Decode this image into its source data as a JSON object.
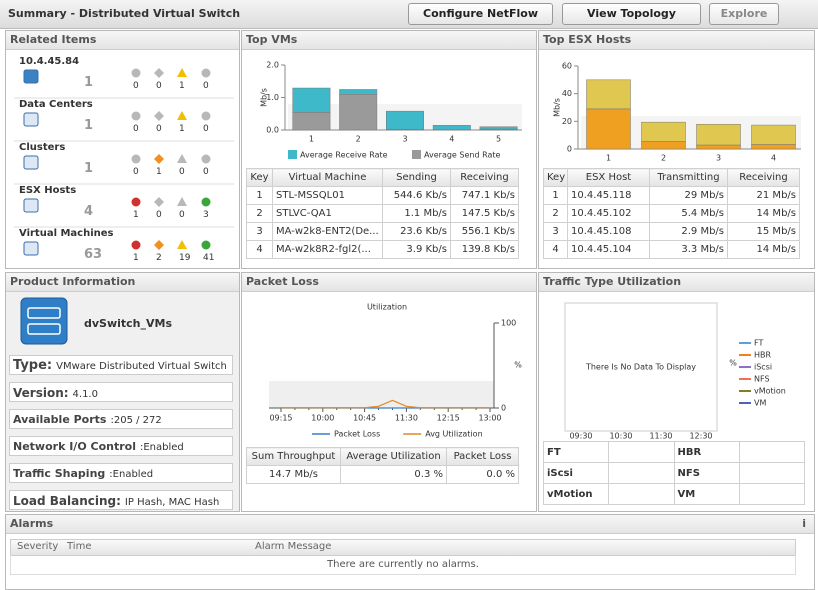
{
  "header": {
    "title": "Summary - Distributed Virtual Switch",
    "buttons": [
      "Configure NetFlow",
      "View Topology",
      "Explore"
    ]
  },
  "related_items": {
    "title": "Related Items",
    "items": [
      {
        "name": "10.4.45.84",
        "count": 1,
        "status": [
          0,
          0,
          1,
          0
        ]
      },
      {
        "name": "Data Centers",
        "count": 1,
        "status": [
          0,
          0,
          1,
          0
        ]
      },
      {
        "name": "Clusters",
        "count": 1,
        "status": [
          0,
          1,
          0,
          0
        ]
      },
      {
        "name": "ESX Hosts",
        "count": 4,
        "status": [
          1,
          0,
          0,
          3
        ]
      },
      {
        "name": "Virtual Machines",
        "count": 63,
        "status": [
          1,
          2,
          19,
          41
        ]
      }
    ]
  },
  "top_vms": {
    "title": "Top VMs",
    "table": {
      "columns": [
        "Key",
        "Virtual Machine",
        "Sending",
        "Receiving"
      ],
      "rows": [
        [
          1,
          "STL-MSSQL01",
          "544.6 Kb/s",
          "747.1 Kb/s"
        ],
        [
          2,
          "STLVC-QA1",
          "1.1 Mb/s",
          "147.5 Kb/s"
        ],
        [
          3,
          "MA-w2k8-ENT2(De...",
          "23.6 Kb/s",
          "556.1 Kb/s"
        ],
        [
          4,
          "MA-w2k8R2-fgl2(...",
          "3.9 Kb/s",
          "139.8 Kb/s"
        ]
      ]
    }
  },
  "top_esx_hosts": {
    "title": "Top ESX Hosts",
    "table": {
      "columns": [
        "Key",
        "ESX Host",
        "Transmitting",
        "Receiving"
      ],
      "rows": [
        [
          1,
          "10.4.45.118",
          "29 Mb/s",
          "21 Mb/s"
        ],
        [
          2,
          "10.4.45.102",
          "5.4 Mb/s",
          "14 Mb/s"
        ],
        [
          3,
          "10.4.45.108",
          "2.9 Mb/s",
          "15 Mb/s"
        ],
        [
          4,
          "10.4.45.104",
          "3.3 Mb/s",
          "14 Mb/s"
        ]
      ]
    }
  },
  "product_information": {
    "title": "Product Information",
    "name": "dvSwitch_VMs",
    "rows": [
      {
        "label": "Type:",
        "value": "VMware Distributed Virtual Switch"
      },
      {
        "label": "Version:",
        "value": "4.1.0"
      },
      {
        "label": "Available Ports",
        "value": ":205 / 272"
      },
      {
        "label": "Network I/O Control",
        "value": ":Enabled"
      },
      {
        "label": "Traffic Shaping",
        "value": ":Enabled"
      },
      {
        "label": "Load Balancing:",
        "value": "IP Hash, MAC Hash"
      }
    ]
  },
  "packet_loss": {
    "title": "Packet Loss",
    "table": {
      "columns": [
        "Sum Throughput",
        "Average Utilization",
        "Packet Loss"
      ],
      "rows": [
        [
          "14.7 Mb/s",
          "0.3 %",
          "0.0 %"
        ]
      ]
    }
  },
  "traffic_type_utilization": {
    "title": "Traffic Type Utilization",
    "table": [
      [
        "FT",
        "HBR"
      ],
      [
        "iScsi",
        "NFS"
      ],
      [
        "vMotion",
        "VM"
      ]
    ]
  },
  "alarms": {
    "title": "Alarms",
    "columns": [
      "Severity",
      "Time",
      "Alarm Message"
    ],
    "message": "There are currently no alarms."
  },
  "chart_data": [
    {
      "type": "bar",
      "stacked": true,
      "y_label": "Mb/s",
      "categories": [
        "1",
        "2",
        "3",
        "4",
        "5"
      ],
      "series": [
        {
          "name": "Average Receive Rate",
          "color": "#3db9c9",
          "values": [
            0.7471,
            0.1475,
            0.5561,
            0.1398,
            0.07
          ]
        },
        {
          "name": "Average Send Rate",
          "color": "#9a9a9a",
          "values": [
            0.5446,
            1.1,
            0.0236,
            0.0039,
            0.03
          ]
        }
      ],
      "ylim": [
        0,
        2
      ],
      "yticks": [
        {
          "value": 0,
          "label": "0.0"
        },
        {
          "value": 1,
          "label": "1.0"
        },
        {
          "value": 2,
          "label": "2.0"
        }
      ],
      "legend": "bottom"
    },
    {
      "type": "bar",
      "stacked": true,
      "y_label": "Mb/s",
      "categories": [
        "1",
        "2",
        "3",
        "4"
      ],
      "series": [
        {
          "color": "#e0c850",
          "values": [
            21,
            14,
            15,
            14
          ]
        },
        {
          "color": "#f0a020",
          "values": [
            29,
            5.4,
            2.9,
            3.3
          ]
        }
      ],
      "ylim": [
        0,
        60
      ],
      "yticks": [
        0,
        20,
        40,
        60
      ]
    },
    {
      "type": "line",
      "title": "Utilization",
      "y_label": "%",
      "y_axis": "right",
      "x": [
        "09:15",
        null,
        null,
        "10:00",
        null,
        null,
        "10:45",
        null,
        null,
        "11:30",
        null,
        null,
        "12:15",
        null,
        null,
        "13:00"
      ],
      "series": [
        {
          "name": "Packet Loss",
          "color": "#3a7fc8",
          "values": [
            0,
            0,
            0,
            0,
            0,
            0,
            0,
            0,
            0,
            0,
            0,
            0,
            0,
            0,
            0,
            0
          ]
        },
        {
          "name": "Avg Utilization",
          "color": "#e08a20",
          "values": [
            0.3,
            0.3,
            0.3,
            0.3,
            0.3,
            0.3,
            0.3,
            2,
            9,
            2,
            0.3,
            0.3,
            0.3,
            0.3,
            0.3,
            0.3
          ]
        }
      ],
      "ylim": [
        0,
        100
      ],
      "yticks": [
        0,
        100
      ],
      "legend": "bottom"
    },
    {
      "type": "line",
      "message": "There Is No Data To Display",
      "y_label": "%",
      "x": [
        "09:30",
        "10:30",
        "11:30",
        "12:30"
      ],
      "series": [
        {
          "name": "FT",
          "color": "#5aa0e0",
          "values": [
            null,
            null,
            null,
            null
          ]
        },
        {
          "name": "HBR",
          "color": "#f08020",
          "values": [
            null,
            null,
            null,
            null
          ]
        },
        {
          "name": "iScsi",
          "color": "#9070c0",
          "values": [
            null,
            null,
            null,
            null
          ]
        },
        {
          "name": "NFS",
          "color": "#f07060",
          "values": [
            null,
            null,
            null,
            null
          ]
        },
        {
          "name": "vMotion",
          "color": "#808020",
          "values": [
            null,
            null,
            null,
            null
          ]
        },
        {
          "name": "VM",
          "color": "#5060c0",
          "values": [
            null,
            null,
            null,
            null
          ]
        }
      ],
      "legend": "right"
    }
  ]
}
